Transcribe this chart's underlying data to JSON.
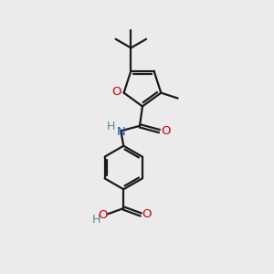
{
  "bg_color": "#ebebeb",
  "bond_color": "#1a1a1a",
  "oxygen_color": "#cc0000",
  "nitrogen_color": "#2255aa",
  "hydrogen_color": "#558899",
  "line_width": 1.6,
  "fig_size": [
    3.0,
    3.0
  ],
  "dpi": 100,
  "xlim": [
    0,
    10
  ],
  "ylim": [
    0,
    10
  ]
}
